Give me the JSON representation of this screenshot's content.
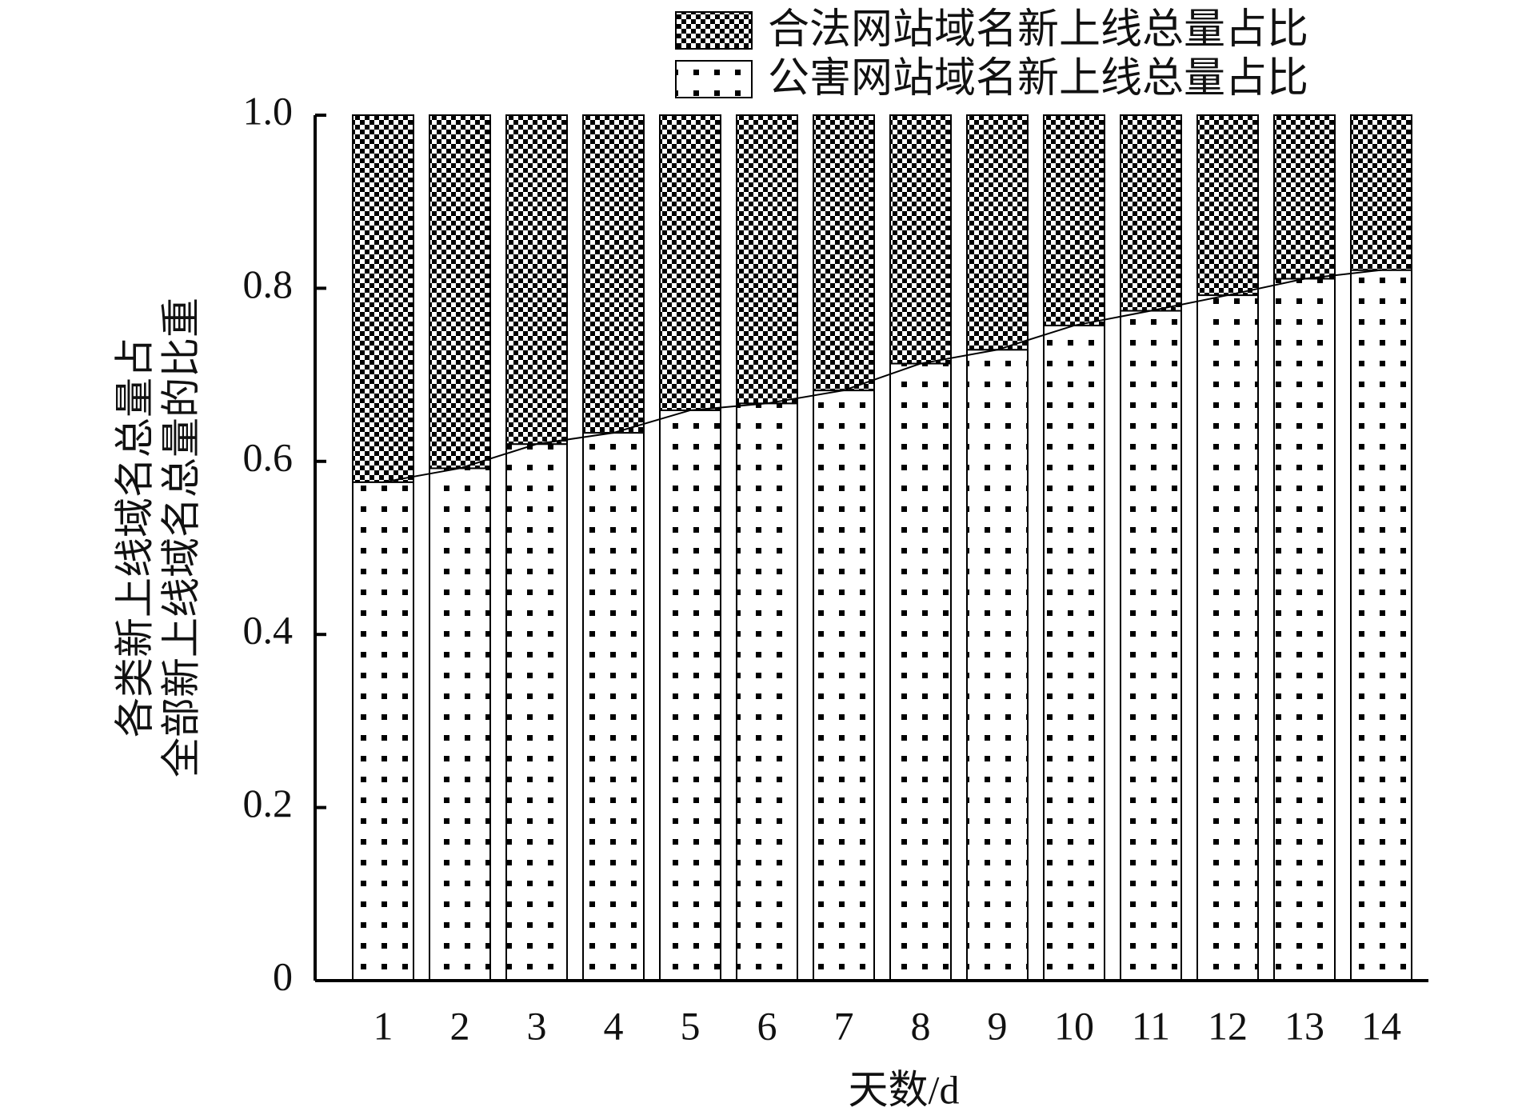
{
  "chart_data": {
    "type": "stacked_bar",
    "x_label": "天数/d",
    "y_label": [
      "各类新上线域名总量占",
      "全部新上线域名总量的比重"
    ],
    "categories": [
      "1",
      "2",
      "3",
      "4",
      "5",
      "6",
      "7",
      "8",
      "9",
      "10",
      "11",
      "12",
      "13",
      "14"
    ],
    "series": [
      {
        "name": "合法网站域名新上线总量占比",
        "color": "#000000",
        "values": [
          0.424,
          0.408,
          0.38,
          0.367,
          0.341,
          0.333,
          0.318,
          0.287,
          0.271,
          0.243,
          0.226,
          0.208,
          0.189,
          0.179
        ]
      },
      {
        "name": "公害网站域名新上线总量占比",
        "color": "#000000",
        "values": [
          0.576,
          0.592,
          0.62,
          0.633,
          0.659,
          0.667,
          0.682,
          0.713,
          0.729,
          0.757,
          0.774,
          0.792,
          0.811,
          0.821
        ]
      }
    ],
    "ylim": [
      0,
      1
    ],
    "yticks": [
      0,
      0.2,
      0.4,
      0.6,
      0.8,
      {
        "value": 1,
        "label": "1.0"
      }
    ]
  }
}
